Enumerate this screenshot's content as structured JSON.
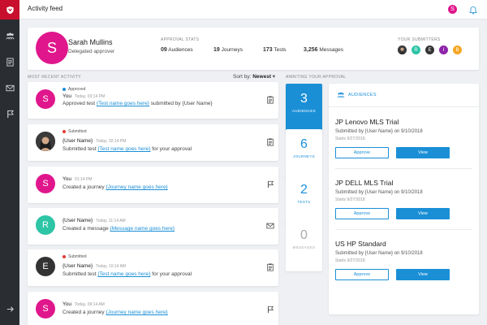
{
  "app": {
    "title": "Activity feed",
    "user_initial": "S"
  },
  "profile": {
    "initial": "S",
    "name": "Sarah Mullins",
    "role": "Delegated approver",
    "stats_label": "APPROVAL STATS",
    "stats": [
      {
        "value": "09",
        "label": "Audiences"
      },
      {
        "value": "19",
        "label": "Journeys"
      },
      {
        "value": "173",
        "label": "Tests"
      },
      {
        "value": "3,256",
        "label": "Messages"
      }
    ],
    "submitters_label": "YOUR SUBMITTERS",
    "submitters": [
      "",
      "R",
      "E",
      "I",
      "B"
    ]
  },
  "feed": {
    "label": "MOST RECENT ACTIVITY",
    "sort_prefix": "Sort by:",
    "sort_value": "Newest",
    "items": [
      {
        "initial": "S",
        "status": "Approved",
        "who": "You",
        "time": "Today, 03:14 PM",
        "pre": "Approved test",
        "link": "{Test name goes here}",
        "post": "submitted by {User Name}",
        "icon": "test-icon"
      },
      {
        "initial": "",
        "status": "Submitted",
        "who": "{User Name}",
        "time": "Today, 02:14 PM",
        "pre": "Submitted test",
        "link": "{Test name goes here}",
        "post": "for your approval",
        "icon": "test-icon"
      },
      {
        "initial": "S",
        "status": "",
        "who": "You",
        "time": "01:14 PM",
        "pre": "Created a journey",
        "link": "{Journey name goes here}",
        "post": "",
        "icon": "flag-icon"
      },
      {
        "initial": "R",
        "status": "",
        "who": "{User Name}",
        "time": "Today, 11:14 AM",
        "pre": "Created a message",
        "link": "{Message name goes here}",
        "post": "",
        "icon": "message-icon"
      },
      {
        "initial": "E",
        "status": "Submitted",
        "who": "{User Name}",
        "time": "Today, 10:14 AM",
        "pre": "Submitted test",
        "link": "{Test name goes here}",
        "post": "for your approval",
        "icon": "test-icon"
      },
      {
        "initial": "S",
        "status": "",
        "who": "You",
        "time": "Today, 09:14 AM",
        "pre": "Created a journey",
        "link": "{Journey name goes here}",
        "post": "",
        "icon": "flag-icon"
      }
    ]
  },
  "awaiting": {
    "label": "AWAITING YOUR APPROVAL",
    "tiles": [
      {
        "num": "3",
        "label": "AUDIENCES"
      },
      {
        "num": "6",
        "label": "JOURNEYS"
      },
      {
        "num": "2",
        "label": "TESTS"
      },
      {
        "num": "0",
        "label": "MESSAGES"
      }
    ],
    "panel_title": "AUDIENCES",
    "approve_label": "Approve",
    "view_label": "View",
    "audiences": [
      {
        "title": "JP Lenovo MLS Trial",
        "sub": "Submitted by {User Name} on 9/10/2018",
        "starts": "Starts 9/27/2018"
      },
      {
        "title": "JP DELL MLS Trial",
        "sub": "Submitted by {User Name} on 9/10/2018",
        "starts": "Starts 9/27/2018"
      },
      {
        "title": "US HP Standard",
        "sub": "Submitted by {User Name} on 9/10/2018",
        "starts": "Starts 9/27/2018"
      }
    ]
  },
  "colors": {
    "accent": "#1a8fd6",
    "brand": "#c8102e",
    "magenta": "#e0168c",
    "teal": "#2ec4a6",
    "dark": "#333333",
    "approved": "#1a8fd6",
    "submitted": "#e53935"
  }
}
